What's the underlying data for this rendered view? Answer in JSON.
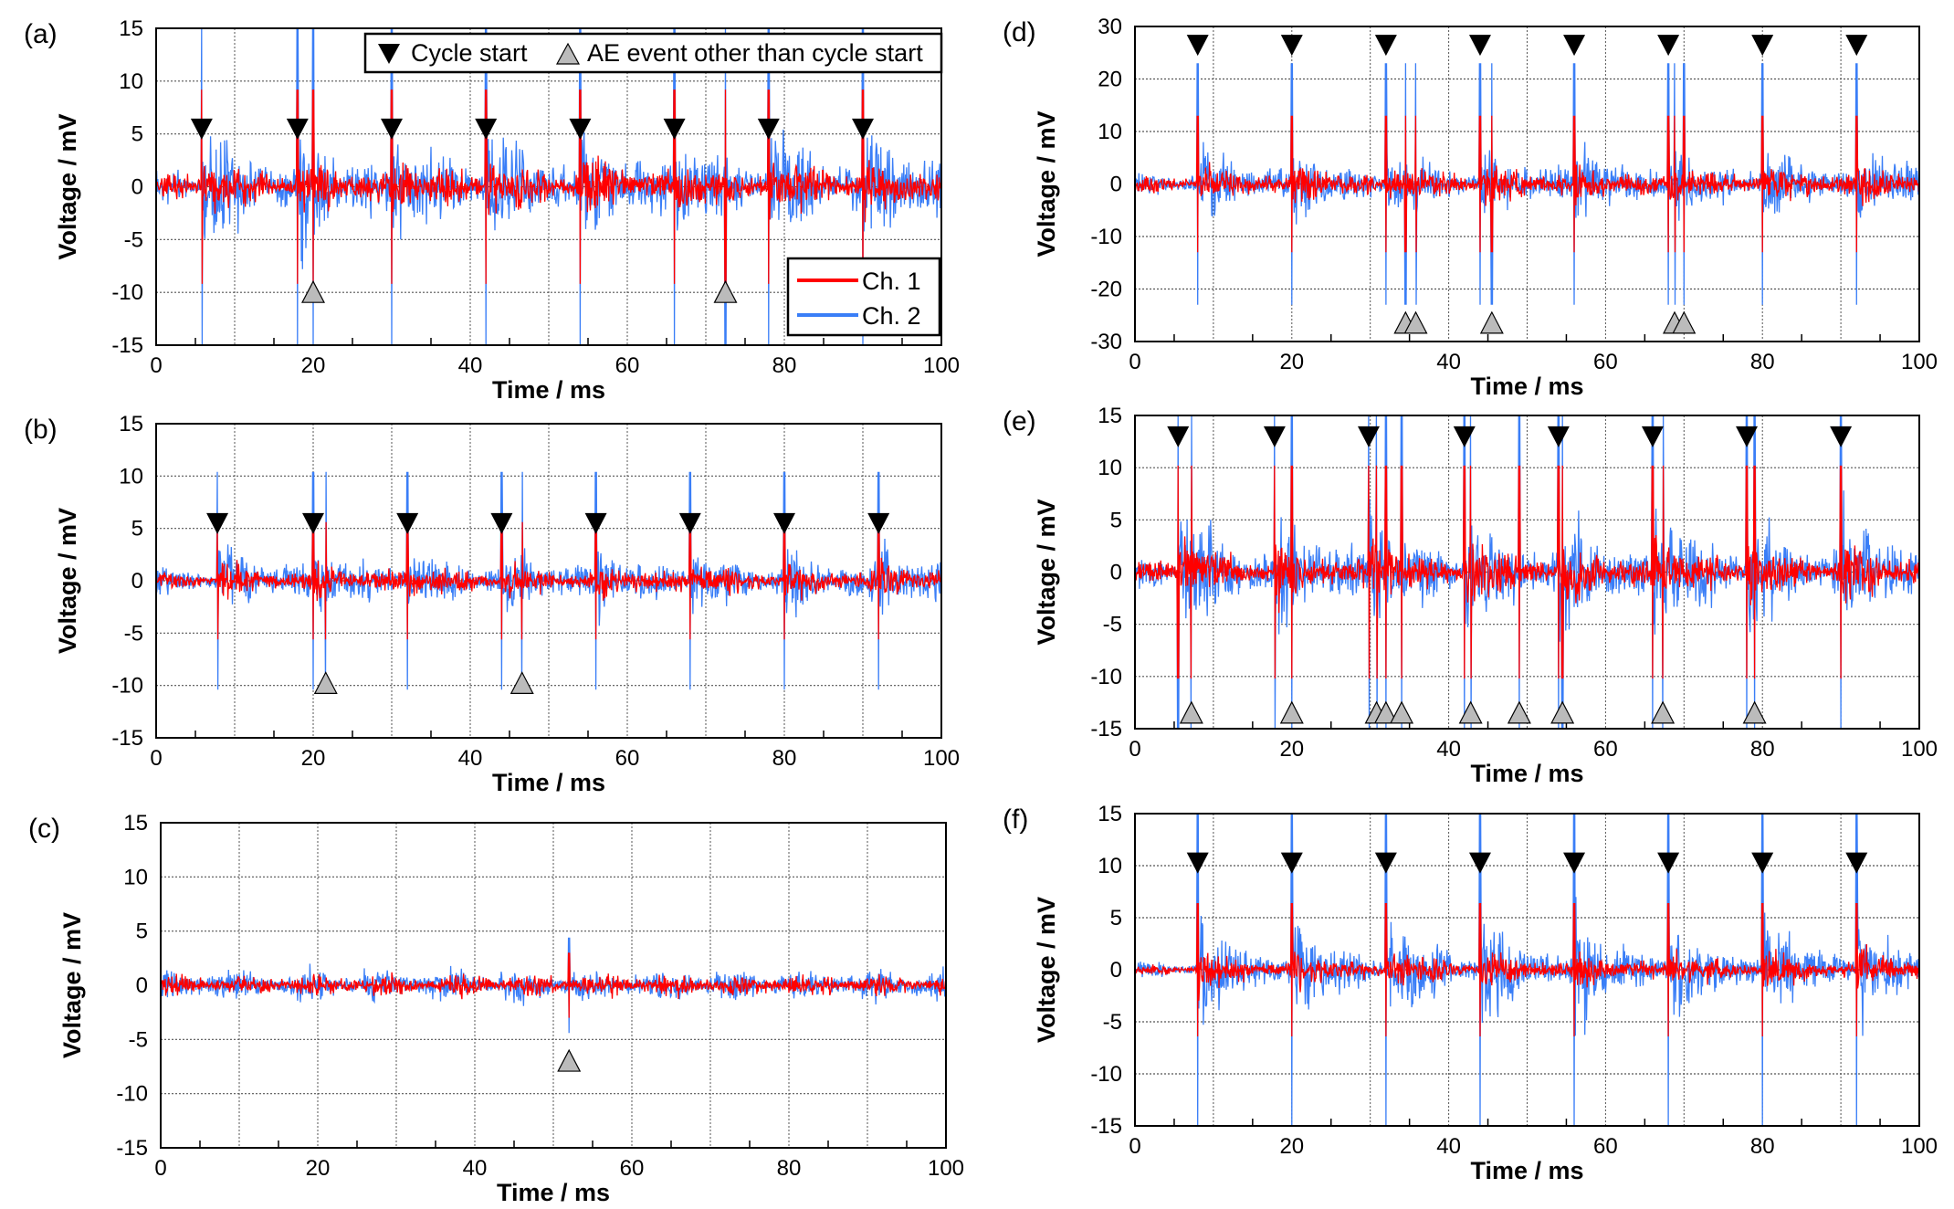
{
  "chart_data": [
    {
      "panel": "(a)",
      "type": "line",
      "xlabel": "Time / ms",
      "ylabel": "Voltage / mV",
      "xlim": [
        0,
        100
      ],
      "ylim": [
        -15,
        15
      ],
      "xticks": [
        0,
        20,
        40,
        60,
        80,
        100
      ],
      "yticks": [
        -15,
        -10,
        -5,
        0,
        5,
        10,
        15
      ],
      "grid": true,
      "legend": "top-right",
      "series": [
        {
          "name": "Ch. 1",
          "color": "#ff0000",
          "base_amplitude_mV": 1.8,
          "burst_peak_mV": 3.5
        },
        {
          "name": "Ch. 2",
          "color": "#3a7ef7",
          "base_amplitude_mV": 2.8,
          "burst_peak_mV": 7
        }
      ],
      "cycle_start_ms": [
        5.8,
        18,
        30,
        42,
        54,
        66,
        78,
        90
      ],
      "cycle_marker_mV": 5.5,
      "ae_event_ms": [
        20,
        72.5
      ],
      "ae_marker_mV": -10
    },
    {
      "panel": "(b)",
      "type": "line",
      "xlabel": "Time / ms",
      "ylabel": "Voltage / mV",
      "xlim": [
        0,
        100
      ],
      "ylim": [
        -15,
        15
      ],
      "xticks": [
        0,
        20,
        40,
        60,
        80,
        100
      ],
      "yticks": [
        -15,
        -10,
        -5,
        0,
        5,
        10,
        15
      ],
      "grid": true,
      "series": [
        {
          "name": "Ch. 1",
          "color": "#ff0000",
          "base_amplitude_mV": 1.2,
          "burst_peak_mV": 2
        },
        {
          "name": "Ch. 2",
          "color": "#3a7ef7",
          "base_amplitude_mV": 2,
          "burst_peak_mV": 4
        }
      ],
      "cycle_start_ms": [
        7.8,
        20,
        32,
        44,
        56,
        68,
        80,
        92
      ],
      "cycle_marker_mV": 5.5,
      "ae_event_ms": [
        21.6,
        46.6
      ],
      "ae_marker_mV": -9.8
    },
    {
      "panel": "(c)",
      "type": "line",
      "xlabel": "Time / ms",
      "ylabel": "Voltage / mV",
      "xlim": [
        0,
        100
      ],
      "ylim": [
        -15,
        15
      ],
      "xticks": [
        0,
        20,
        40,
        60,
        80,
        100
      ],
      "yticks": [
        -15,
        -10,
        -5,
        0,
        5,
        10,
        15
      ],
      "grid": true,
      "series": [
        {
          "name": "Ch. 1",
          "color": "#ff0000",
          "base_amplitude_mV": 1.5,
          "burst_peak_mV": 0
        },
        {
          "name": "Ch. 2",
          "color": "#3a7ef7",
          "base_amplitude_mV": 2.2,
          "burst_peak_mV": 0
        }
      ],
      "cycle_start_ms": [],
      "cycle_marker_mV": 0,
      "ae_event_ms": [
        52
      ],
      "ae_marker_mV": -7
    },
    {
      "panel": "(d)",
      "type": "line",
      "xlabel": "Time / ms",
      "ylabel": "Voltage / mV",
      "xlim": [
        0,
        100
      ],
      "ylim": [
        -30,
        30
      ],
      "xticks": [
        0,
        20,
        40,
        60,
        80,
        100
      ],
      "yticks": [
        -30,
        -20,
        -10,
        0,
        10,
        20,
        30
      ],
      "grid": true,
      "series": [
        {
          "name": "Ch. 1",
          "color": "#ff0000",
          "base_amplitude_mV": 2.5,
          "burst_peak_mV": 5
        },
        {
          "name": "Ch. 2",
          "color": "#3a7ef7",
          "base_amplitude_mV": 3.5,
          "burst_peak_mV": 10
        }
      ],
      "cycle_start_ms": [
        8,
        20,
        32,
        44,
        56,
        68,
        80,
        92
      ],
      "cycle_marker_mV": 26.5,
      "ae_event_ms": [
        34.5,
        35.8,
        45.5,
        68.8,
        70
      ],
      "ae_marker_mV": -26.5
    },
    {
      "panel": "(e)",
      "type": "line",
      "xlabel": "Time / ms",
      "ylabel": "Voltage / mV",
      "xlim": [
        0,
        100
      ],
      "ylim": [
        -15,
        15
      ],
      "xticks": [
        0,
        20,
        40,
        60,
        80,
        100
      ],
      "yticks": [
        -15,
        -10,
        -5,
        0,
        5,
        10,
        15
      ],
      "grid": true,
      "series": [
        {
          "name": "Ch. 1",
          "color": "#ff0000",
          "base_amplitude_mV": 1.5,
          "burst_peak_mV": 4.5
        },
        {
          "name": "Ch. 2",
          "color": "#3a7ef7",
          "base_amplitude_mV": 2.5,
          "burst_peak_mV": 9
        }
      ],
      "cycle_start_ms": [
        5.5,
        17.8,
        29.8,
        42,
        54,
        66,
        78,
        90
      ],
      "cycle_marker_mV": 13,
      "ae_event_ms": [
        7.2,
        20,
        30.8,
        32,
        34,
        42.8,
        49,
        54.5,
        67.3,
        79
      ],
      "ae_marker_mV": -13.5
    },
    {
      "panel": "(f)",
      "type": "line",
      "xlabel": "Time / ms",
      "ylabel": "Voltage / mV",
      "xlim": [
        0,
        100
      ],
      "ylim": [
        -15,
        15
      ],
      "xticks": [
        0,
        20,
        40,
        60,
        80,
        100
      ],
      "yticks": [
        -15,
        -10,
        -5,
        0,
        5,
        10,
        15
      ],
      "grid": true,
      "series": [
        {
          "name": "Ch. 1",
          "color": "#ff0000",
          "base_amplitude_mV": 0.8,
          "burst_peak_mV": 3
        },
        {
          "name": "Ch. 2",
          "color": "#3a7ef7",
          "base_amplitude_mV": 1.2,
          "burst_peak_mV": 9
        }
      ],
      "cycle_start_ms": [
        8,
        20,
        32,
        44,
        56,
        68,
        80,
        92
      ],
      "cycle_marker_mV": 10.3,
      "ae_event_ms": [],
      "ae_marker_mV": 0
    }
  ],
  "legend": {
    "cycle_start": "Cycle start",
    "ae_event": "AE event other than cycle start",
    "ch1": "Ch. 1",
    "ch2": "Ch. 2"
  }
}
